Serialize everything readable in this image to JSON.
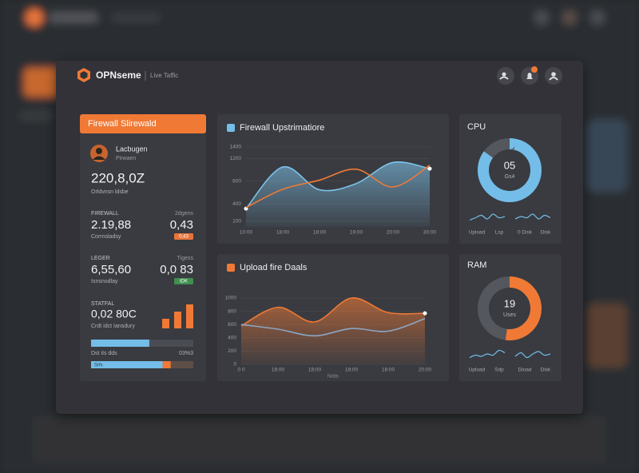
{
  "header": {
    "brand": "OPNseme",
    "subtitle": "Live Taffic"
  },
  "firewall_card": {
    "title": "Firewall Slirewald",
    "user": {
      "name": "Lacbugen",
      "role": "Pirwaen"
    },
    "total": "220,8,0Z",
    "total_caption": "Orldvnsn ldsbe",
    "stats": [
      {
        "label": "FIREWALL",
        "side_label": "2dgens",
        "value": "2.19,88",
        "side_value": "0,43",
        "caption": "Corrnsladsy",
        "badge": "0,43",
        "badge_color": "#e8743a"
      },
      {
        "label": "LEGER",
        "side_label": "Tigess",
        "value": "6,55,60",
        "side_value": "0,0 83",
        "caption": "Isnsnodlay",
        "badge": "tDK",
        "badge_color": "#3f8f4e"
      }
    ],
    "status": {
      "label": "STATFAL",
      "value": "0,02 80C",
      "caption": "Crdt idct Iansdury",
      "bars": [
        40,
        70,
        100
      ],
      "ylim": [
        0,
        100
      ],
      "color": "#f07a35"
    },
    "progress": [
      {
        "label": "Dst iIs dds",
        "value_label": "03%3",
        "segments": [
          {
            "value": 57,
            "color": "#74bde8"
          },
          {
            "value": 43,
            "color": "#4a4c53"
          }
        ]
      },
      {
        "label": "Srfs",
        "segments": [
          {
            "value": 70,
            "color": "#74bde8"
          },
          {
            "value": 8,
            "color": "#f07a35"
          },
          {
            "value": 22,
            "color": "#5e4e48"
          }
        ]
      }
    ]
  },
  "chart_data": [
    {
      "type": "line",
      "title": "Firewall Upstrimatiore",
      "icon_color": "#74bde8",
      "categories": [
        "10:00",
        "18:00",
        "18:00",
        "19:00",
        "20:00",
        "30:00"
      ],
      "ylim": [
        0,
        1400
      ],
      "yticks": [
        100,
        400,
        800,
        1200,
        1400
      ],
      "grid": true,
      "series": [
        {
          "color": "#7ec3ea",
          "area": true,
          "values": [
            320,
            1050,
            650,
            760,
            1130,
            1020
          ]
        },
        {
          "color": "#f07a35",
          "area": false,
          "values": [
            340,
            660,
            820,
            1010,
            700,
            1080
          ]
        }
      ]
    },
    {
      "type": "line",
      "title": "Upload fire Daals",
      "icon_color": "#f07a35",
      "x_label": "Ndds",
      "categories": [
        "0 0",
        "18:00",
        "18:00",
        "18:00",
        "18:00",
        "20:00"
      ],
      "ylim": [
        0,
        1000
      ],
      "yticks": [
        0,
        200,
        400,
        600,
        800,
        1000
      ],
      "grid": true,
      "series": [
        {
          "color": "#f07a35",
          "area": true,
          "values": [
            580,
            860,
            640,
            1000,
            780,
            770
          ]
        },
        {
          "color": "#8aa6c6",
          "area": false,
          "values": [
            600,
            530,
            430,
            540,
            500,
            690
          ]
        }
      ]
    },
    {
      "type": "donut",
      "title": "CPU",
      "center_value": "05",
      "center_label": "Gs4",
      "values": [
        85,
        15
      ],
      "colors": [
        "#74bde8",
        "#55575e"
      ],
      "spark_color": "#74bde8",
      "spark_ylim": [
        0,
        10
      ],
      "sparklines": [
        [
          3,
          5,
          7,
          4,
          8,
          5,
          6
        ],
        [
          4,
          6,
          5,
          8,
          4,
          7,
          5
        ]
      ],
      "legend_labels": [
        "Upload",
        "Lsp",
        "0 Disk",
        "Disk"
      ]
    },
    {
      "type": "donut",
      "title": "RAM",
      "center_value": "19",
      "center_label": "Uses",
      "values": [
        52,
        48
      ],
      "colors": [
        "#f07a35",
        "#55575e"
      ],
      "spark_color": "#74bde8",
      "spark_ylim": [
        0,
        10
      ],
      "sparklines": [
        [
          3,
          5,
          4,
          6,
          5,
          9,
          7
        ],
        [
          4,
          7,
          3,
          6,
          8,
          5,
          6
        ]
      ],
      "legend_labels": [
        "Upload",
        "Sdp",
        "Dioad",
        "Disk"
      ]
    }
  ]
}
